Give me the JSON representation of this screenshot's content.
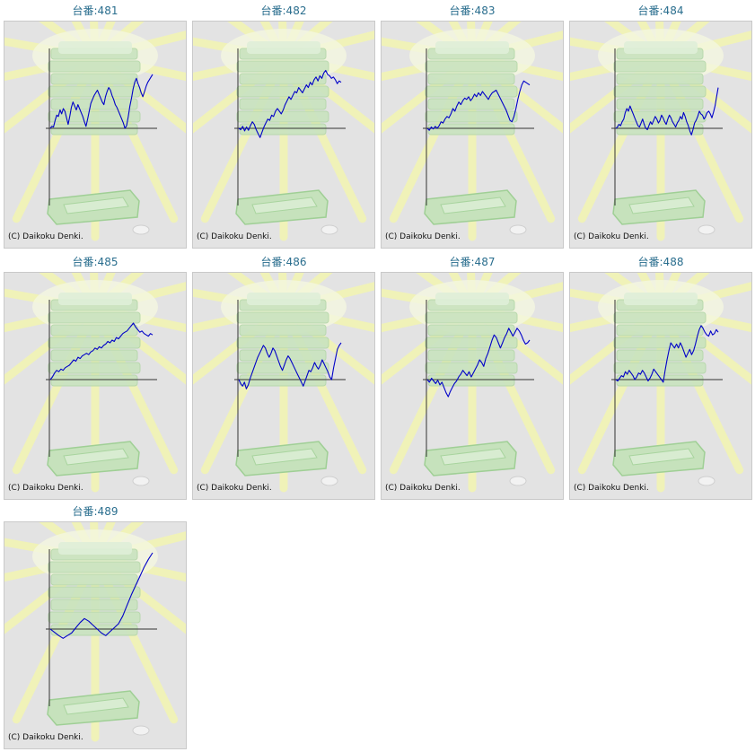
{
  "chart_data": [
    {
      "type": "line",
      "title": "台番:481",
      "copyright": "(C) Daikoku Denki.",
      "color": "#0000c8",
      "values": [
        0,
        3,
        2,
        12,
        20,
        18,
        28,
        22,
        30,
        26,
        16,
        6,
        18,
        32,
        40,
        34,
        28,
        36,
        30,
        24,
        18,
        10,
        3,
        14,
        26,
        38,
        44,
        50,
        54,
        58,
        52,
        46,
        40,
        36,
        48,
        56,
        62,
        58,
        50,
        44,
        36,
        32,
        26,
        20,
        14,
        8,
        0,
        4,
        18,
        34,
        46,
        60,
        70,
        76,
        68,
        62,
        54,
        48,
        56,
        64,
        70,
        74,
        78,
        82
      ]
    },
    {
      "type": "line",
      "title": "台番:482",
      "copyright": "(C) Daikoku Denki.",
      "color": "#0000c8",
      "values": [
        0,
        -2,
        3,
        -4,
        2,
        -3,
        4,
        10,
        6,
        -2,
        -8,
        -14,
        -6,
        2,
        8,
        14,
        12,
        20,
        18,
        26,
        30,
        26,
        22,
        28,
        36,
        42,
        48,
        44,
        50,
        56,
        54,
        62,
        58,
        54,
        60,
        66,
        62,
        70,
        66,
        74,
        78,
        72,
        80,
        76,
        84,
        88,
        82,
        80,
        76,
        78,
        74,
        68,
        72,
        70
      ]
    },
    {
      "type": "line",
      "title": "台番:483",
      "copyright": "(C) Daikoku Denki.",
      "color": "#0000c8",
      "values": [
        0,
        -3,
        2,
        -1,
        3,
        0,
        4,
        10,
        8,
        14,
        18,
        16,
        22,
        30,
        26,
        34,
        40,
        36,
        42,
        46,
        44,
        48,
        42,
        46,
        52,
        48,
        54,
        50,
        56,
        52,
        48,
        44,
        50,
        54,
        56,
        58,
        52,
        46,
        40,
        34,
        28,
        20,
        12,
        10,
        18,
        30,
        44,
        56,
        66,
        72,
        70,
        68,
        66
      ]
    },
    {
      "type": "line",
      "title": "台番:484",
      "copyright": "(C) Daikoku Denki.",
      "color": "#0000c8",
      "values": [
        0,
        2,
        6,
        4,
        10,
        14,
        24,
        30,
        26,
        34,
        28,
        22,
        16,
        10,
        4,
        2,
        8,
        14,
        6,
        0,
        -2,
        4,
        10,
        6,
        12,
        18,
        14,
        8,
        12,
        20,
        16,
        10,
        6,
        14,
        20,
        16,
        10,
        6,
        2,
        8,
        12,
        18,
        14,
        24,
        18,
        10,
        4,
        -4,
        -10,
        -2,
        8,
        12,
        18,
        26,
        22,
        20,
        14,
        18,
        24,
        26,
        22,
        16,
        24,
        34,
        48,
        62
      ]
    },
    {
      "type": "line",
      "title": "台番:485",
      "copyright": "(C) Daikoku Denki.",
      "color": "#0000c8",
      "values": [
        0,
        4,
        10,
        14,
        12,
        16,
        14,
        18,
        20,
        22,
        26,
        30,
        28,
        34,
        32,
        36,
        38,
        40,
        38,
        42,
        44,
        48,
        46,
        50,
        48,
        52,
        54,
        58,
        56,
        60,
        58,
        64,
        62,
        66,
        70,
        72,
        74,
        78,
        82,
        86,
        80,
        76,
        72,
        74,
        70,
        68,
        66,
        70,
        68
      ]
    },
    {
      "type": "line",
      "title": "台番:486",
      "copyright": "(C) Daikoku Denki.",
      "color": "#0000c8",
      "values": [
        0,
        -6,
        -10,
        -4,
        -14,
        -8,
        2,
        10,
        18,
        26,
        34,
        40,
        46,
        52,
        48,
        40,
        34,
        40,
        48,
        44,
        36,
        28,
        20,
        14,
        22,
        30,
        36,
        32,
        26,
        20,
        14,
        8,
        2,
        -4,
        -10,
        -2,
        6,
        14,
        12,
        18,
        26,
        20,
        16,
        22,
        30,
        24,
        18,
        12,
        4,
        0,
        18,
        32,
        46,
        52,
        56
      ]
    },
    {
      "type": "line",
      "title": "台番:487",
      "copyright": "(C) Daikoku Denki.",
      "color": "#0000c8",
      "values": [
        0,
        -4,
        2,
        -2,
        -6,
        -1,
        -8,
        -4,
        -12,
        -20,
        -26,
        -18,
        -12,
        -6,
        -2,
        4,
        8,
        14,
        10,
        6,
        12,
        4,
        10,
        16,
        22,
        30,
        26,
        20,
        32,
        40,
        50,
        60,
        68,
        64,
        56,
        48,
        56,
        64,
        70,
        78,
        72,
        66,
        72,
        78,
        74,
        68,
        60,
        54,
        56,
        60
      ]
    },
    {
      "type": "line",
      "title": "台番:488",
      "copyright": "(C) Daikoku Denki.",
      "color": "#0000c8",
      "values": [
        0,
        -2,
        2,
        6,
        4,
        12,
        8,
        14,
        10,
        6,
        0,
        4,
        10,
        8,
        14,
        10,
        4,
        -2,
        2,
        8,
        16,
        12,
        8,
        4,
        0,
        -4,
        14,
        30,
        44,
        56,
        52,
        48,
        54,
        48,
        56,
        50,
        42,
        34,
        40,
        46,
        38,
        44,
        54,
        66,
        76,
        82,
        78,
        72,
        68,
        66,
        74,
        68,
        70,
        76,
        72
      ]
    },
    {
      "type": "line",
      "title": "台番:489",
      "copyright": "(C) Daikoku Denki.",
      "color": "#0000c8",
      "values": [
        0,
        -5,
        -10,
        -14,
        -10,
        -6,
        2,
        10,
        16,
        12,
        6,
        0,
        -6,
        -10,
        -4,
        2,
        8,
        20,
        36,
        52,
        66,
        80,
        94,
        106,
        116
      ]
    }
  ]
}
